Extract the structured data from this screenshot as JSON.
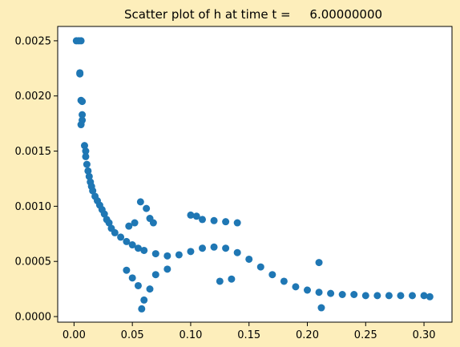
{
  "colors": {
    "figure_bg": "#fdeebb",
    "axes_bg": "#ffffff",
    "marker": "#1f77b4",
    "axis": "#000000"
  },
  "chart_data": {
    "type": "scatter",
    "title": "Scatter plot of h at time t =     6.00000000",
    "xlabel": "",
    "ylabel": "",
    "xlim": [
      -0.014,
      0.324
    ],
    "ylim": [
      -5.06e-05,
      0.00263
    ],
    "x_ticks": [
      0.0,
      0.05,
      0.1,
      0.15,
      0.2,
      0.25,
      0.3
    ],
    "x_tick_labels": [
      "0.00",
      "0.05",
      "0.10",
      "0.15",
      "0.20",
      "0.25",
      "0.30"
    ],
    "y_ticks": [
      0.0,
      0.0005,
      0.001,
      0.0015,
      0.002,
      0.0025
    ],
    "y_tick_labels": [
      "0.0000",
      "0.0005",
      "0.0010",
      "0.0015",
      "0.0020",
      "0.0025"
    ],
    "grid": false,
    "legend": "none",
    "series": [
      {
        "marker": "circle",
        "points": [
          [
            0.002,
            0.0025
          ],
          [
            0.004,
            0.0025
          ],
          [
            0.006,
            0.0025
          ],
          [
            0.005,
            0.0022
          ],
          [
            0.005,
            0.00221
          ],
          [
            0.006,
            0.00196
          ],
          [
            0.007,
            0.00195
          ],
          [
            0.007,
            0.00183
          ],
          [
            0.007,
            0.00178
          ],
          [
            0.006,
            0.00174
          ],
          [
            0.009,
            0.00155
          ],
          [
            0.01,
            0.0015
          ],
          [
            0.01,
            0.00145
          ],
          [
            0.011,
            0.00138
          ],
          [
            0.012,
            0.00132
          ],
          [
            0.013,
            0.00127
          ],
          [
            0.014,
            0.00122
          ],
          [
            0.015,
            0.00118
          ],
          [
            0.016,
            0.00114
          ],
          [
            0.018,
            0.00109
          ],
          [
            0.02,
            0.00105
          ],
          [
            0.022,
            0.00101
          ],
          [
            0.024,
            0.00097
          ],
          [
            0.026,
            0.00093
          ],
          [
            0.028,
            0.00088
          ],
          [
            0.03,
            0.00085
          ],
          [
            0.032,
            0.0008
          ],
          [
            0.035,
            0.00076
          ],
          [
            0.04,
            0.00072
          ],
          [
            0.045,
            0.00068
          ],
          [
            0.05,
            0.00065
          ],
          [
            0.055,
            0.00062
          ],
          [
            0.06,
            0.0006
          ],
          [
            0.07,
            0.00057
          ],
          [
            0.08,
            0.00055
          ],
          [
            0.09,
            0.00056
          ],
          [
            0.1,
            0.00059
          ],
          [
            0.11,
            0.00062
          ],
          [
            0.12,
            0.00063
          ],
          [
            0.13,
            0.00062
          ],
          [
            0.14,
            0.00058
          ],
          [
            0.15,
            0.00052
          ],
          [
            0.16,
            0.00045
          ],
          [
            0.17,
            0.00038
          ],
          [
            0.18,
            0.00032
          ],
          [
            0.19,
            0.00027
          ],
          [
            0.2,
            0.00024
          ],
          [
            0.21,
            0.00022
          ],
          [
            0.22,
            0.00021
          ],
          [
            0.23,
            0.0002
          ],
          [
            0.24,
            0.0002
          ],
          [
            0.25,
            0.00019
          ],
          [
            0.26,
            0.00019
          ],
          [
            0.27,
            0.00019
          ],
          [
            0.28,
            0.00019
          ],
          [
            0.29,
            0.00019
          ],
          [
            0.3,
            0.00019
          ],
          [
            0.305,
            0.00018
          ],
          [
            0.057,
            0.00104
          ],
          [
            0.062,
            0.00098
          ],
          [
            0.065,
            0.00089
          ],
          [
            0.068,
            0.00085
          ],
          [
            0.052,
            0.00085
          ],
          [
            0.047,
            0.00082
          ],
          [
            0.1,
            0.00092
          ],
          [
            0.105,
            0.00091
          ],
          [
            0.11,
            0.00088
          ],
          [
            0.12,
            0.00087
          ],
          [
            0.13,
            0.00086
          ],
          [
            0.14,
            0.00085
          ],
          [
            0.055,
            0.00028
          ],
          [
            0.06,
            0.00015
          ],
          [
            0.058,
            7e-05
          ],
          [
            0.065,
            0.00025
          ],
          [
            0.05,
            0.00035
          ],
          [
            0.045,
            0.00042
          ],
          [
            0.07,
            0.00038
          ],
          [
            0.08,
            0.00043
          ],
          [
            0.21,
            0.00049
          ],
          [
            0.212,
            8e-05
          ],
          [
            0.125,
            0.00032
          ],
          [
            0.135,
            0.00034
          ]
        ]
      }
    ]
  }
}
